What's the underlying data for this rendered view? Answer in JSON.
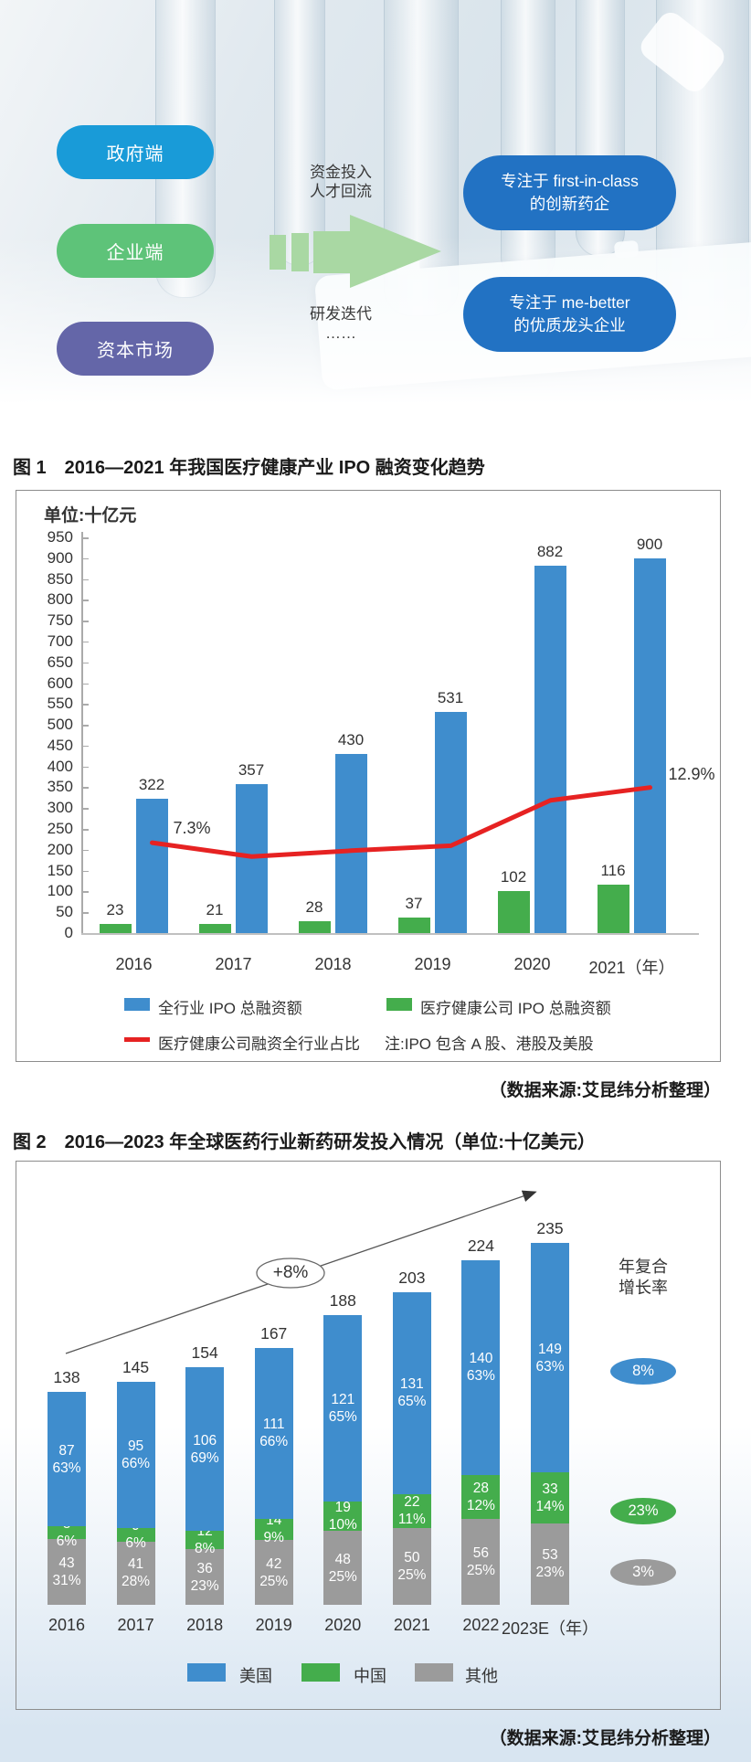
{
  "page": {
    "figure1_title": "图 1　2016—2021 年我国医疗健康产业 IPO 融资变化趋势",
    "figure2_title": "图 2　2016—2023 年全球医药行业新药研发投入情况（单位:十亿美元）",
    "source1": "（数据来源:艾昆纬分析整理）",
    "source2": "（数据来源:艾昆纬分析整理）"
  },
  "diagram": {
    "pills": [
      {
        "label": "政府端",
        "color": "#199bd8"
      },
      {
        "label": "企业端",
        "color": "#5ec379"
      },
      {
        "label": "资本市场",
        "color": "#6466a8"
      }
    ],
    "flow_labels_top": [
      "资金投入",
      "人才回流"
    ],
    "flow_labels_bottom": [
      "研发迭代",
      "……"
    ],
    "arrow_color": "#a9d8a3",
    "targets": [
      {
        "lines": [
          "专注于 first-in-class",
          "的创新药企"
        ],
        "color": "#2272c3"
      },
      {
        "lines": [
          "专注于 me-better",
          "的优质龙头企业"
        ],
        "color": "#2272c3"
      }
    ]
  },
  "colors": {
    "bar_blue": "#3f8dcd",
    "bar_green": "#44ad4c",
    "bar_gray": "#9b9b9b",
    "line_red": "#e62222"
  },
  "chart_data": [
    {
      "type": "bar",
      "title": "图 1 2016—2021 年我国医疗健康产业 IPO 融资变化趋势",
      "unit_label": "单位:十亿元",
      "categories": [
        "2016",
        "2017",
        "2018",
        "2019",
        "2020",
        "2021"
      ],
      "x_suffix_last": "（年）",
      "ylim": [
        0,
        950
      ],
      "ytick_step": 50,
      "series": [
        {
          "name": "医疗健康公司 IPO 总融资额",
          "kind": "bar",
          "color": "#44ad4c",
          "values": [
            23,
            21,
            28,
            37,
            102,
            116
          ]
        },
        {
          "name": "全行业 IPO 总融资额",
          "kind": "bar",
          "color": "#3f8dcd",
          "values": [
            322,
            357,
            430,
            531,
            882,
            900
          ]
        },
        {
          "name": "医疗健康公司融资全行业占比",
          "kind": "line",
          "color": "#e62222",
          "values_pct": [
            7.3,
            5.9,
            6.5,
            7.0,
            11.6,
            12.9
          ],
          "start_label": "7.3%",
          "end_label": "12.9%"
        }
      ],
      "note": "注:IPO 包含 A 股、港股及美股",
      "legend_position": "bottom",
      "grid": false
    },
    {
      "type": "bar",
      "stacked": true,
      "title": "图 2 2016—2023 年全球医药行业新药研发投入情况（单位:十亿美元）",
      "categories": [
        "2016",
        "2017",
        "2018",
        "2019",
        "2020",
        "2021",
        "2022",
        "2023E"
      ],
      "x_suffix_last": "（年）",
      "totals": [
        138,
        145,
        154,
        167,
        188,
        203,
        224,
        235
      ],
      "series": [
        {
          "name": "美国",
          "color": "#3f8dcd",
          "values": [
            87,
            95,
            106,
            111,
            121,
            131,
            140,
            149
          ],
          "pct_labels": [
            "63%",
            "66%",
            "69%",
            "66%",
            "65%",
            "65%",
            "63%",
            "63%"
          ]
        },
        {
          "name": "中国",
          "color": "#44ad4c",
          "values": [
            8,
            9,
            12,
            14,
            19,
            22,
            28,
            33
          ],
          "pct_labels": [
            "6%",
            "6%",
            "8%",
            "9%",
            "10%",
            "11%",
            "12%",
            "14%"
          ]
        },
        {
          "name": "其他",
          "color": "#9b9b9b",
          "values": [
            43,
            41,
            36,
            42,
            48,
            50,
            56,
            53
          ],
          "pct_labels": [
            "31%",
            "28%",
            "23%",
            "25%",
            "25%",
            "25%",
            "25%",
            "23%"
          ]
        }
      ],
      "growth_label": "+8%",
      "cagr_heading_lines": [
        "年复合",
        "增长率"
      ],
      "cagr_badges": [
        {
          "label": "8%",
          "color": "#3f8dcd"
        },
        {
          "label": "23%",
          "color": "#44ad4c"
        },
        {
          "label": "3%",
          "color": "#9b9b9b"
        }
      ],
      "legend_position": "bottom",
      "grid": false
    }
  ]
}
